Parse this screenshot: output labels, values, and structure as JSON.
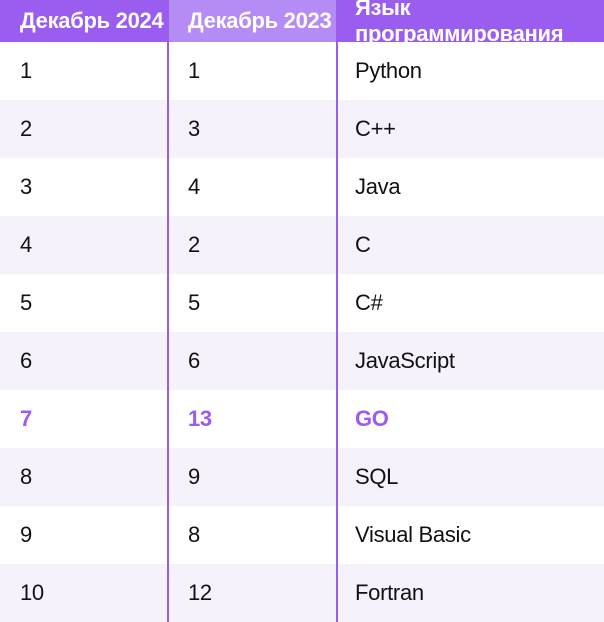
{
  "headers": [
    "Декабрь 2024",
    "Декабрь 2023",
    "Язык программирования"
  ],
  "rows": [
    {
      "dec2024": "1",
      "dec2023": "1",
      "language": "Python"
    },
    {
      "dec2024": "2",
      "dec2023": "3",
      "language": "C++"
    },
    {
      "dec2024": "3",
      "dec2023": "4",
      "language": "Java"
    },
    {
      "dec2024": "4",
      "dec2023": "2",
      "language": "C"
    },
    {
      "dec2024": "5",
      "dec2023": "5",
      "language": "C#"
    },
    {
      "dec2024": "6",
      "dec2023": "6",
      "language": "JavaScript"
    },
    {
      "dec2024": "7",
      "dec2023": "13",
      "language": "GO"
    },
    {
      "dec2024": "8",
      "dec2023": "9",
      "language": "SQL"
    },
    {
      "dec2024": "9",
      "dec2023": "8",
      "language": "Visual Basic"
    },
    {
      "dec2024": "10",
      "dec2023": "12",
      "language": "Fortran"
    }
  ],
  "highlighted_row": 6,
  "colors": {
    "accent": "#9b5cf0",
    "header_mid": "#b58cf5",
    "stripe": "#f5f2fb"
  }
}
